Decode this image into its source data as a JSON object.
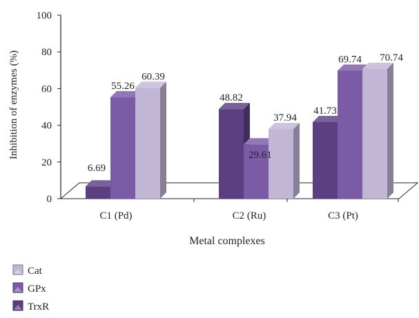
{
  "chart_data": {
    "type": "bar",
    "title": "",
    "xlabel": "Metal complexes",
    "ylabel": "Inhibition of enzymes (%)",
    "ylim": [
      0,
      100
    ],
    "yticks": [
      "0",
      "20",
      "40",
      "60",
      "80",
      "100"
    ],
    "categories": [
      "C1 (Pd)",
      "C2 (Ru)",
      "C3 (Pt)"
    ],
    "series": [
      {
        "name": "TrxR",
        "values": [
          6.69,
          48.82,
          41.73
        ],
        "labels": [
          "6.69",
          "48.82",
          "41.73"
        ],
        "color": "#5b3f82"
      },
      {
        "name": "GPx",
        "values": [
          55.26,
          29.61,
          69.74
        ],
        "labels": [
          "55.26",
          "29.61",
          "69.74"
        ],
        "color": "#7b5aa6"
      },
      {
        "name": "Cat",
        "values": [
          60.39,
          37.94,
          70.74
        ],
        "labels": [
          "60.39",
          "37.94",
          "70.74"
        ],
        "color": "#c2b6d6"
      }
    ],
    "legend": {
      "placement": "bottom-left",
      "order": [
        "Cat",
        "GPx",
        "TrxR"
      ]
    },
    "grid": false,
    "style": "3d-bar"
  }
}
